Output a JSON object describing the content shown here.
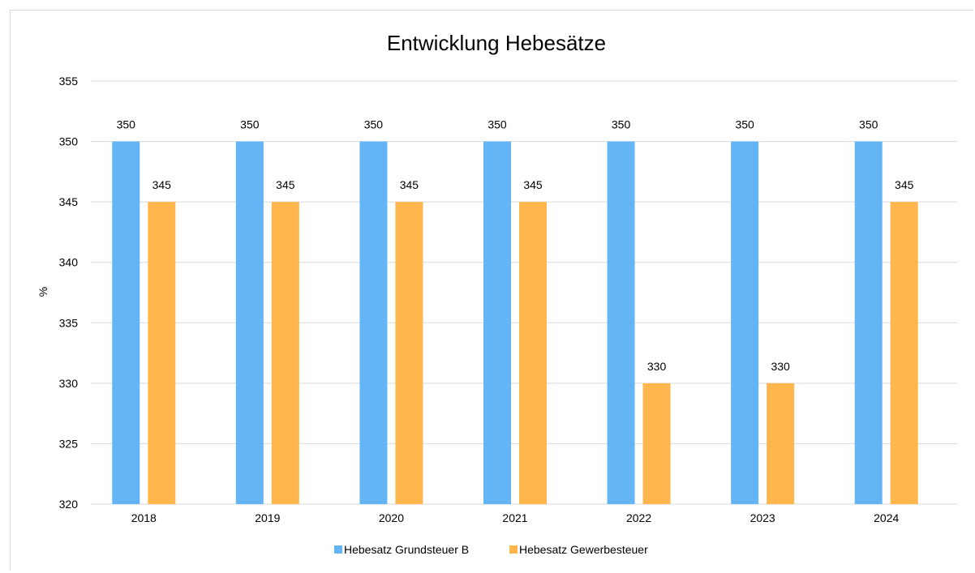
{
  "chart_data": {
    "type": "bar",
    "title": "Entwicklung Hebesätze",
    "xlabel": "",
    "ylabel": "%",
    "ylim": [
      320,
      355
    ],
    "yticks": [
      320,
      325,
      330,
      335,
      340,
      345,
      350,
      355
    ],
    "grid": true,
    "legend_position": "bottom",
    "categories": [
      "2018",
      "2019",
      "2020",
      "2021",
      "2022",
      "2023",
      "2024"
    ],
    "series": [
      {
        "name": "Hebesatz Grundsteuer B",
        "color": "#64b5f6",
        "values": [
          350,
          350,
          350,
          350,
          350,
          350,
          350
        ]
      },
      {
        "name": "Hebesatz Gewerbesteuer",
        "color": "#ffb74d",
        "values": [
          345,
          345,
          345,
          345,
          330,
          330,
          345
        ]
      }
    ]
  }
}
